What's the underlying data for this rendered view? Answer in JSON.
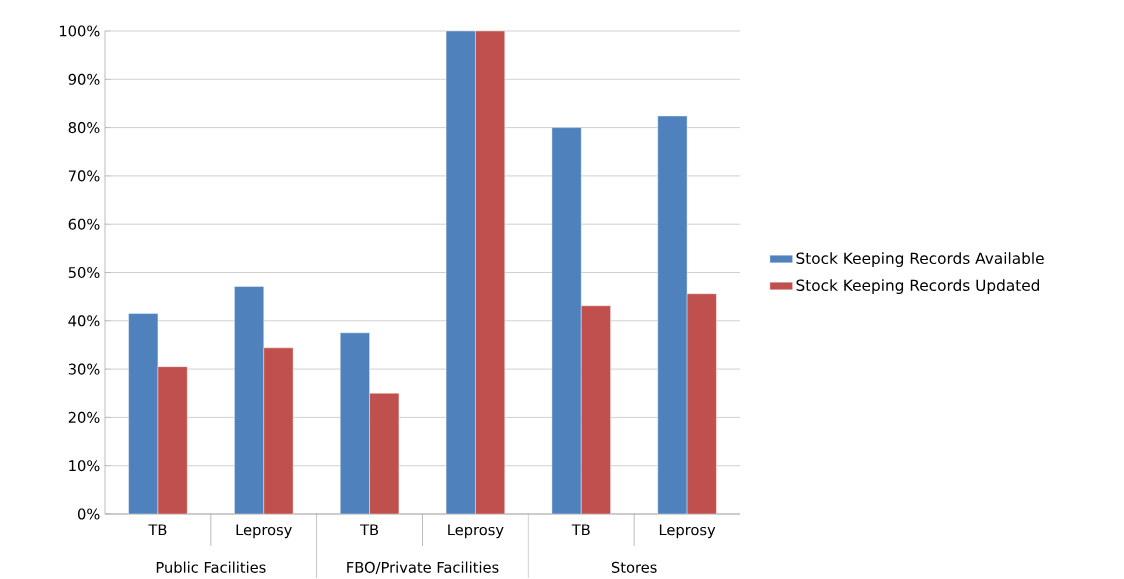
{
  "chart_data": {
    "type": "bar",
    "categories": [
      "TB",
      "Leprosy",
      "TB",
      "Leprosy",
      "TB",
      "Leprosy"
    ],
    "series": [
      {
        "name": "Stock Keeping Records Available",
        "color": "#4f81bd",
        "values": [
          41.5,
          47.1,
          37.5,
          100,
          80,
          82.4
        ]
      },
      {
        "name": "Stock Keeping Records Updated",
        "color": "#c0504d",
        "values": [
          30.5,
          34.4,
          25.0,
          100,
          43.1,
          45.6
        ]
      }
    ],
    "ylim": [
      0,
      100
    ],
    "yticks": [
      {
        "value": 0,
        "label": "0%"
      },
      {
        "value": 10,
        "label": "10%"
      },
      {
        "value": 20,
        "label": "20%"
      },
      {
        "value": 30,
        "label": "30%"
      },
      {
        "value": 40,
        "label": "40%"
      },
      {
        "value": 50,
        "label": "50%"
      },
      {
        "value": 60,
        "label": "60%"
      },
      {
        "value": 70,
        "label": "70%"
      },
      {
        "value": 80,
        "label": "80%"
      },
      {
        "value": 90,
        "label": "90%"
      },
      {
        "value": 100,
        "label": "100%"
      }
    ],
    "annotations": [
      "Public Facilities",
      "FBO/Private Facilities",
      "Stores"
    ],
    "grid": "y",
    "legend": "right"
  }
}
